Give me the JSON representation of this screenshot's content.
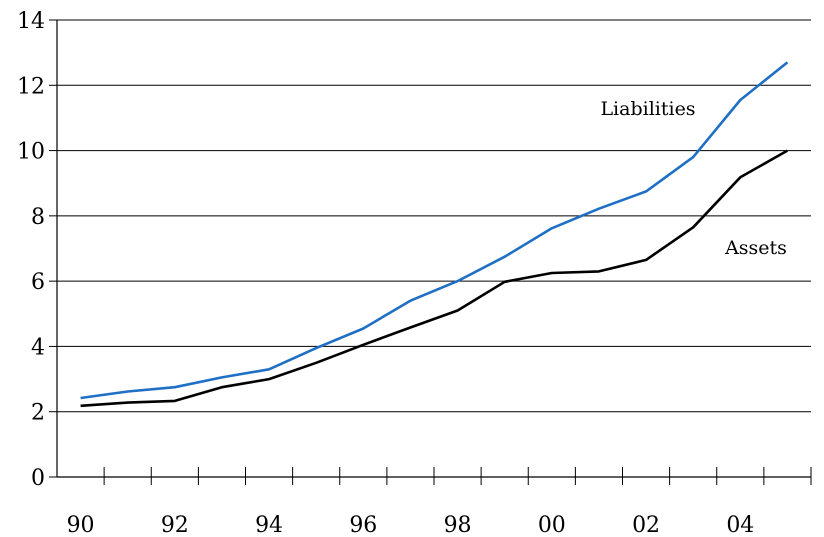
{
  "chart_data": {
    "type": "line",
    "title": "",
    "xlabel": "",
    "ylabel": "",
    "x": [
      1990,
      1991,
      1992,
      1993,
      1994,
      1995,
      1996,
      1997,
      1998,
      1999,
      2000,
      2001,
      2002,
      2003,
      2004,
      2005
    ],
    "x_tick_values": [
      1990,
      1992,
      1994,
      1996,
      1998,
      2000,
      2002,
      2004
    ],
    "x_tick_labels": [
      "90",
      "92",
      "94",
      "96",
      "98",
      "00",
      "02",
      "04"
    ],
    "xlim": [
      1989.5,
      2005.5
    ],
    "ylim": [
      0,
      14
    ],
    "y_ticks": [
      0,
      2,
      4,
      6,
      8,
      10,
      12,
      14
    ],
    "grid": "horizontal",
    "series": [
      {
        "name": "Liabilities",
        "color": "#1f6fc5",
        "values": [
          2.42,
          2.62,
          2.75,
          3.05,
          3.3,
          3.95,
          4.55,
          5.4,
          6.0,
          6.75,
          7.62,
          8.22,
          8.75,
          9.8,
          11.55,
          12.7
        ]
      },
      {
        "name": "Assets",
        "color": "#000000",
        "values": [
          2.18,
          2.28,
          2.33,
          2.75,
          3.0,
          3.5,
          4.05,
          4.58,
          5.1,
          5.98,
          6.25,
          6.3,
          6.65,
          7.65,
          9.18,
          10.0
        ]
      }
    ]
  }
}
